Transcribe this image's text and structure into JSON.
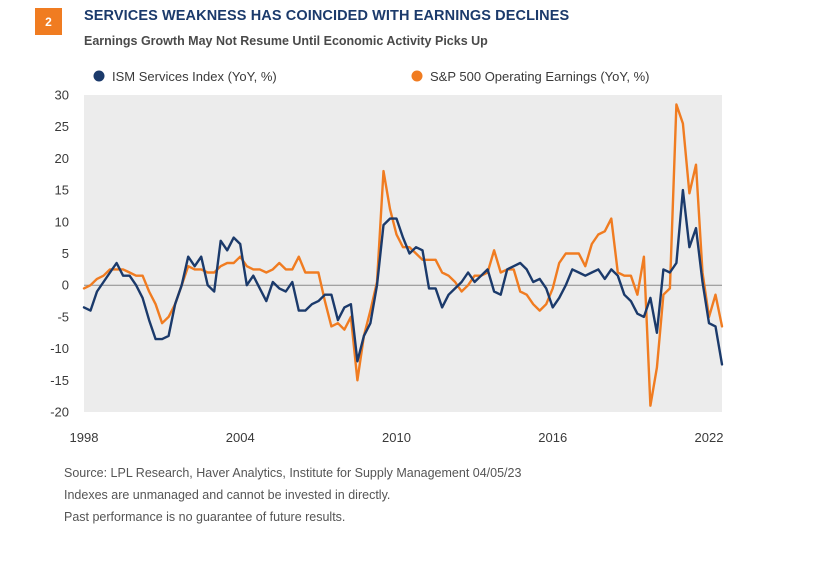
{
  "figure": {
    "number": "2",
    "title": "SERVICES WEAKNESS HAS COINCIDED WITH EARNINGS DECLINES",
    "subtitle": "Earnings Growth May Not Resume Until Economic Activity Picks Up"
  },
  "colors": {
    "accent": "#f07c21",
    "navy": "#1b3a6b",
    "plot_bg": "#ececec"
  },
  "chart_data": {
    "type": "line",
    "xlim": [
      1998,
      2022.5
    ],
    "ylim": [
      -20,
      30
    ],
    "x_ticks": [
      {
        "value": 1998,
        "label": "1998"
      },
      {
        "value": 2004,
        "label": "2004"
      },
      {
        "value": 2010,
        "label": "2010"
      },
      {
        "value": 2016,
        "label": "2016"
      },
      {
        "value": 2022,
        "label": "2022"
      }
    ],
    "y_ticks": [
      30,
      25,
      20,
      15,
      10,
      5,
      0,
      -5,
      -10,
      -15,
      -20
    ],
    "legend_position": "top",
    "series": [
      {
        "name": "ISM Services Index (YoY, %)",
        "color": "#1b3a6b",
        "x": [
          1998.0,
          1998.25,
          1998.5,
          1998.75,
          1999.0,
          1999.25,
          1999.5,
          1999.75,
          2000.0,
          2000.25,
          2000.5,
          2000.75,
          2001.0,
          2001.25,
          2001.5,
          2001.75,
          2002.0,
          2002.25,
          2002.5,
          2002.75,
          2003.0,
          2003.25,
          2003.5,
          2003.75,
          2004.0,
          2004.25,
          2004.5,
          2004.75,
          2005.0,
          2005.25,
          2005.5,
          2005.75,
          2006.0,
          2006.25,
          2006.5,
          2006.75,
          2007.0,
          2007.25,
          2007.5,
          2007.75,
          2008.0,
          2008.25,
          2008.5,
          2008.75,
          2009.0,
          2009.25,
          2009.5,
          2009.75,
          2010.0,
          2010.25,
          2010.5,
          2010.75,
          2011.0,
          2011.25,
          2011.5,
          2011.75,
          2012.0,
          2012.25,
          2012.5,
          2012.75,
          2013.0,
          2013.25,
          2013.5,
          2013.75,
          2014.0,
          2014.25,
          2014.5,
          2014.75,
          2015.0,
          2015.25,
          2015.5,
          2015.75,
          2016.0,
          2016.25,
          2016.5,
          2016.75,
          2017.0,
          2017.25,
          2017.5,
          2017.75,
          2018.0,
          2018.25,
          2018.5,
          2018.75,
          2019.0,
          2019.25,
          2019.5,
          2019.75,
          2020.0,
          2020.25,
          2020.5,
          2020.75,
          2021.0,
          2021.25,
          2021.5,
          2021.75,
          2022.0,
          2022.25,
          2022.5
        ],
        "y": [
          -3.5,
          -4,
          -1,
          0.5,
          2,
          3.5,
          1.5,
          1.5,
          0,
          -2,
          -5.5,
          -8.5,
          -8.5,
          -8,
          -3,
          0,
          4.5,
          3,
          4.5,
          0,
          -1,
          7,
          5.5,
          7.5,
          6.5,
          0,
          1.5,
          -0.5,
          -2.5,
          0.5,
          -0.5,
          -1,
          0.5,
          -4,
          -4,
          -3,
          -2.5,
          -1.5,
          -1.5,
          -5.5,
          -3.5,
          -3,
          -12,
          -8,
          -6,
          0,
          9.5,
          10.5,
          10.5,
          7.5,
          5,
          6,
          5.5,
          -0.5,
          -0.5,
          -3.5,
          -1.5,
          -0.5,
          0.5,
          2,
          0.5,
          1.5,
          2.5,
          -1,
          -1.5,
          2.5,
          3,
          3.5,
          2.5,
          0.5,
          1,
          -0.5,
          -3.5,
          -2,
          0,
          2.5,
          2,
          1.5,
          2,
          2.5,
          1,
          2.5,
          1.5,
          -1.5,
          -2.5,
          -4.5,
          -5,
          -2,
          -7.5,
          2.5,
          2,
          3.5,
          15,
          6,
          9,
          0.5,
          -6,
          -6.5,
          -12.5
        ]
      },
      {
        "name": "S&P 500 Operating Earnings (YoY, %)",
        "color": "#f07c21",
        "x": [
          1998.0,
          1998.25,
          1998.5,
          1998.75,
          1999.0,
          1999.25,
          1999.5,
          1999.75,
          2000.0,
          2000.25,
          2000.5,
          2000.75,
          2001.0,
          2001.25,
          2001.5,
          2001.75,
          2002.0,
          2002.25,
          2002.5,
          2002.75,
          2003.0,
          2003.25,
          2003.5,
          2003.75,
          2004.0,
          2004.25,
          2004.5,
          2004.75,
          2005.0,
          2005.25,
          2005.5,
          2005.75,
          2006.0,
          2006.25,
          2006.5,
          2006.75,
          2007.0,
          2007.25,
          2007.5,
          2007.75,
          2008.0,
          2008.25,
          2008.5,
          2008.75,
          2009.0,
          2009.25,
          2009.5,
          2009.75,
          2010.0,
          2010.25,
          2010.5,
          2010.75,
          2011.0,
          2011.25,
          2011.5,
          2011.75,
          2012.0,
          2012.25,
          2012.5,
          2012.75,
          2013.0,
          2013.25,
          2013.5,
          2013.75,
          2014.0,
          2014.25,
          2014.5,
          2014.75,
          2015.0,
          2015.25,
          2015.5,
          2015.75,
          2016.0,
          2016.25,
          2016.5,
          2016.75,
          2017.0,
          2017.25,
          2017.5,
          2017.75,
          2018.0,
          2018.25,
          2018.5,
          2018.75,
          2019.0,
          2019.25,
          2019.5,
          2019.75,
          2020.0,
          2020.25,
          2020.5,
          2020.75,
          2021.0,
          2021.25,
          2021.5,
          2021.75,
          2022.0,
          2022.25,
          2022.5
        ],
        "y": [
          -0.5,
          0,
          1,
          1.5,
          2.5,
          2.5,
          2.5,
          2,
          1.5,
          1.5,
          -1,
          -3,
          -6,
          -5,
          -3,
          0,
          3,
          2.5,
          2.5,
          2,
          2,
          3,
          3.5,
          3.5,
          4.5,
          3,
          2.5,
          2.5,
          2,
          2.5,
          3.5,
          2.5,
          2.5,
          4.5,
          2,
          2,
          2,
          -2.5,
          -6.5,
          -6,
          -7,
          -5,
          -15,
          -8,
          -4,
          0.5,
          18,
          12,
          8,
          6,
          6,
          5,
          4,
          4,
          4,
          2,
          1.5,
          0.5,
          -1,
          0,
          1.5,
          1.5,
          2,
          5.5,
          2,
          2.5,
          2.5,
          -1,
          -1.5,
          -3,
          -4,
          -3,
          -0.5,
          3.5,
          5,
          5,
          5,
          3,
          6.5,
          8,
          8.5,
          10.5,
          2,
          1.5,
          1.5,
          -1.5,
          4.5,
          -19,
          -13,
          -1.5,
          -0.5,
          28.5,
          25.5,
          14.5,
          19,
          2,
          -5,
          -1.5,
          -6.5
        ]
      }
    ]
  },
  "notes": {
    "source": "Source: LPL Research, Haver Analytics, Institute for Supply Management  04/05/23",
    "line2": "Indexes are unmanaged and cannot be invested in directly.",
    "line3": "Past performance is no guarantee of future results."
  }
}
